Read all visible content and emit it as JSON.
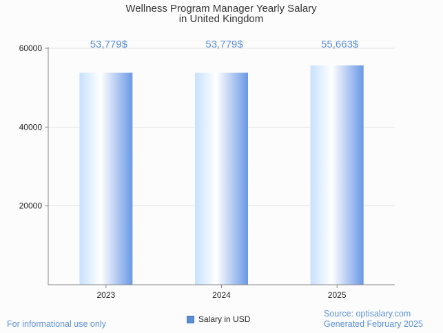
{
  "chart_data": {
    "type": "bar",
    "title_lines": [
      "Wellness Program Manager Yearly Salary",
      "in United Kingdom"
    ],
    "categories": [
      "2023",
      "2024",
      "2025"
    ],
    "values": [
      53779,
      53779,
      55663
    ],
    "data_labels": [
      "53,779$",
      "53,779$",
      "55,663$"
    ],
    "series": [
      {
        "name": "Salary in USD",
        "values": [
          53779,
          53779,
          55663
        ]
      }
    ],
    "ylim": [
      0,
      60000
    ],
    "yticks": [
      20000,
      40000,
      60000
    ],
    "ytick_labels": [
      "20000",
      "40000",
      "60000"
    ],
    "xlabel": "",
    "ylabel": "",
    "grid": true,
    "legend_position": "bottom-center"
  },
  "footer": {
    "disclaimer": "For informational use only",
    "source": "Source: optisalary.com",
    "generated": "Generated February 2025"
  },
  "colors": {
    "bar_light": "#dbeeff",
    "bar_white": "#ffffff",
    "bar_dark": "#6a98e6",
    "label": "#5b8fd6"
  }
}
